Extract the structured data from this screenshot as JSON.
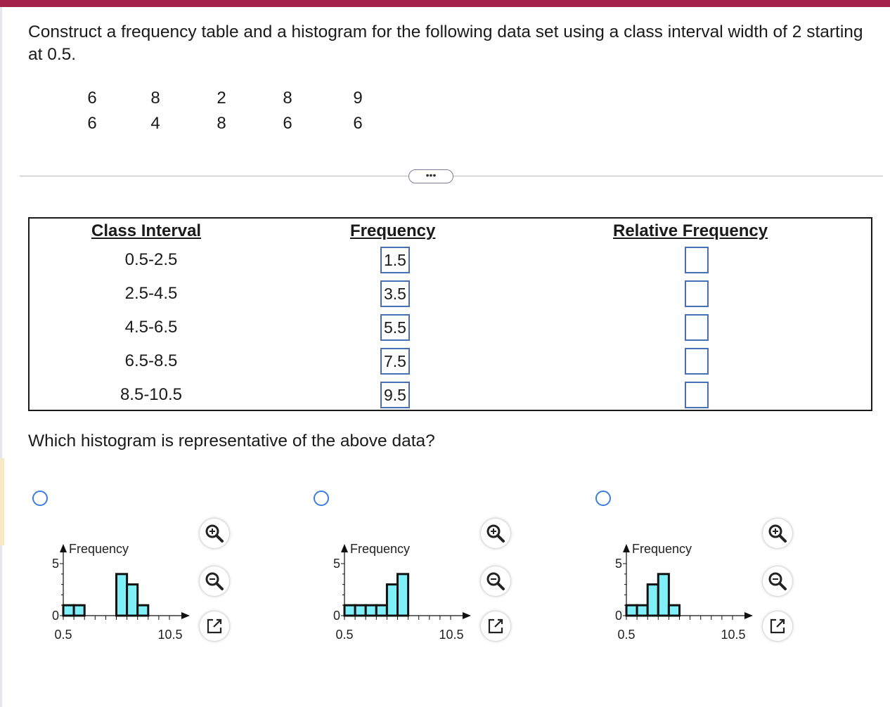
{
  "question": {
    "text": "Construct a frequency table and a histogram for the following data set using a class interval width of 2 starting at 0.5."
  },
  "data_set": {
    "rows": [
      [
        "6",
        "8",
        "2",
        "8",
        "9"
      ],
      [
        "6",
        "4",
        "8",
        "6",
        "6"
      ]
    ]
  },
  "more_button": {
    "label": "•••"
  },
  "table": {
    "headers": {
      "class_interval": "Class Interval",
      "frequency": "Frequency",
      "relative_frequency": "Relative Frequency"
    },
    "rows": [
      {
        "interval": "0.5-2.5",
        "frequency": "1.5",
        "relative_frequency": ""
      },
      {
        "interval": "2.5-4.5",
        "frequency": "3.5",
        "relative_frequency": ""
      },
      {
        "interval": "4.5-6.5",
        "frequency": "5.5",
        "relative_frequency": ""
      },
      {
        "interval": "6.5-8.5",
        "frequency": "7.5",
        "relative_frequency": ""
      },
      {
        "interval": "8.5-10.5",
        "frequency": "9.5",
        "relative_frequency": ""
      }
    ]
  },
  "histogram_question": "Which histogram is representative of the above data?",
  "options": [
    {
      "chart_data": {
        "type": "bar",
        "ylabel": "Frequency",
        "x_start_label": "0.5",
        "x_end_label": "10.5",
        "y_top_label": "5",
        "y_bottom_label": "0",
        "ylim": [
          0,
          5
        ],
        "bin_edges": [
          0.5,
          1.5,
          2.5,
          3.5,
          4.5,
          5.5,
          6.5,
          7.5,
          8.5,
          9.5,
          10.5
        ],
        "values": [
          1,
          1,
          0,
          0,
          0,
          4,
          3,
          1,
          0,
          0
        ]
      }
    },
    {
      "chart_data": {
        "type": "bar",
        "ylabel": "Frequency",
        "x_start_label": "0.5",
        "x_end_label": "10.5",
        "y_top_label": "5",
        "y_bottom_label": "0",
        "ylim": [
          0,
          5
        ],
        "bin_edges": [
          0.5,
          1.5,
          2.5,
          3.5,
          4.5,
          5.5,
          6.5,
          7.5,
          8.5,
          9.5,
          10.5
        ],
        "values": [
          1,
          1,
          1,
          1,
          3,
          4,
          0,
          0,
          0,
          0
        ]
      }
    },
    {
      "chart_data": {
        "type": "bar",
        "ylabel": "Frequency",
        "x_start_label": "0.5",
        "x_end_label": "10.5",
        "y_top_label": "5",
        "y_bottom_label": "0",
        "ylim": [
          0,
          5
        ],
        "bin_edges": [
          0.5,
          1.5,
          2.5,
          3.5,
          4.5,
          5.5,
          6.5,
          7.5,
          8.5,
          9.5,
          10.5
        ],
        "values": [
          1,
          1,
          3,
          4,
          1,
          0,
          0,
          0,
          0,
          0
        ]
      }
    }
  ],
  "colors": {
    "top_bar": "#a3224a",
    "bar_fill": "#7ff0f8",
    "input_border": "#4a6fb5",
    "radio_border": "#3b7de0"
  },
  "icons": {
    "zoom_in": "zoom-in-icon",
    "zoom_out": "zoom-out-icon",
    "open_new": "open-in-new-window-icon"
  }
}
